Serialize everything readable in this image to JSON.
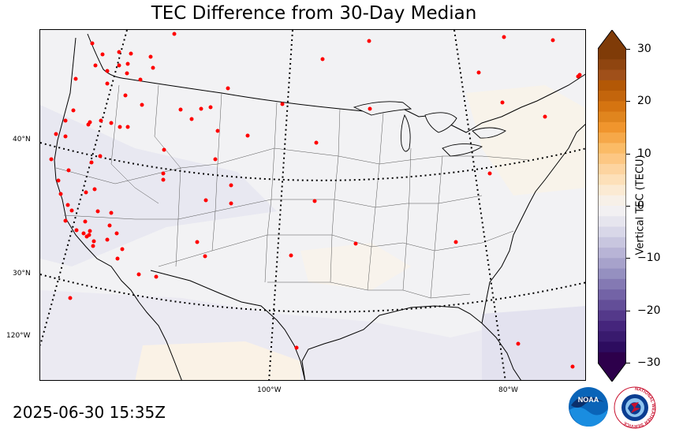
{
  "title": "TEC Difference from 30-Day Median",
  "timestamp": "2025-06-30 15:35Z",
  "map": {
    "lat_labels": [
      "40°N",
      "30°N",
      "120°W"
    ],
    "lon_labels": [
      "100°W",
      "80°W"
    ]
  },
  "colorbar": {
    "label": "Vertical TEC (TECU)",
    "range": [
      -30,
      30
    ],
    "ticks": [
      "30",
      "20",
      "10",
      "0",
      "−10",
      "−20",
      "−30"
    ],
    "tick_values": [
      30,
      20,
      10,
      0,
      -10,
      -20,
      -30
    ],
    "colors_top_to_bottom": [
      "#7f3b08",
      "#8f4510",
      "#a0501a",
      "#b35806",
      "#c3650c",
      "#d57411",
      "#e0851e",
      "#f0952d",
      "#f6a849",
      "#fbbb66",
      "#fdc783",
      "#fdd4a0",
      "#fde0b9",
      "#fbead3",
      "#f7f0e8",
      "#f2f0f2",
      "#e6e5ee",
      "#d8d7e8",
      "#c8c6df",
      "#b8b4d6",
      "#a7a2cb",
      "#9590c0",
      "#8479b3",
      "#7363a6",
      "#634e98",
      "#54398a",
      "#45257c",
      "#391a6e",
      "#2d0c5f",
      "#2d004b"
    ]
  },
  "logos": {
    "noaa": "NOAA",
    "nws_ring": "NATIONAL WEATHER SERVICE"
  }
}
